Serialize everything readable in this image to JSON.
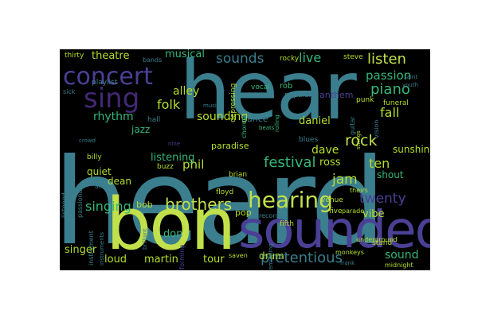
{
  "colors": {
    "background": "#000000",
    "page": "#ffffff",
    "teal": "#3b7e8e",
    "lime": "#c1e04a",
    "purple": "#4a4095",
    "violet": "#432873",
    "green": "#35b779",
    "yellowgreen": "#b5de2b"
  },
  "words": {
    "heard": "heard",
    "hear": "hear",
    "bon": "bon",
    "sounded": "sounded",
    "concert": "concert",
    "sing": "sing",
    "hearing": "hearing",
    "brothers": "brothers",
    "pretentious": "pretentious",
    "sounds": "sounds",
    "listen": "listen",
    "passion": "passion",
    "piano": "piano",
    "live": "live",
    "theatre": "theatre",
    "musical": "musical",
    "folk": "folk",
    "alley": "alley",
    "rhythm": "rhythm",
    "jazz": "jazz",
    "sounding": "sounding",
    "dance": "dance",
    "daniel": "daniel",
    "rock": "rock",
    "fall": "fall",
    "festival": "festival",
    "dave": "dave",
    "ross": "ross",
    "jam": "jam",
    "ten": "ten",
    "shout": "shout",
    "sunshine": "sunshine",
    "twenty": "twenty",
    "vibe": "vibe",
    "sound": "sound",
    "paradise": "paradise",
    "phil": "phil",
    "listening": "listening",
    "quiet": "quiet",
    "dean": "dean",
    "singing": "singing",
    "singer": "singer",
    "loud": "loud",
    "martin": "martin",
    "tour": "tour",
    "drum": "drum",
    "pop": "pop",
    "bob": "bob",
    "don": "don",
    "blues": "blues",
    "rob": "rob",
    "anthem": "anthem",
    "steve": "steve",
    "punk": "punk",
    "funeral": "funeral",
    "vocal": "vocal",
    "popular": "popular",
    "playlist": "playlist",
    "bands": "bands",
    "thirty": "thirty",
    "rocky": "rocky",
    "stand": "stand",
    "midnight": "midnight",
    "underground": "underground",
    "five": "five",
    "fifth": "fifth",
    "venue": "venue",
    "parade": "parade",
    "brian": "brian",
    "buzz": "buzz",
    "floyd": "floyd",
    "billy": "billy",
    "monkeys": "monkeys",
    "saven": "saven",
    "theirs": "theirs",
    "listened": "listened",
    "jay": "jay",
    "recorded": "recorded",
    "crowd": "crowd",
    "hall": "hall",
    "music": "music",
    "frank": "frank",
    "depressing": "depressing",
    "performing": "performing",
    "instrument": "instrument",
    "brilliant": "brilliant",
    "reminding": "reminding",
    "nine": "nine",
    "sick": "sick",
    "passionate": "passionate",
    "vision": "vision",
    "instruments": "instruments",
    "saint": "saint",
    "youth": "youth",
    "rolling": "rolling",
    "andy": "andy",
    "beats": "beats",
    "chorus": "chorus",
    "guitar": "guitar",
    "strings": "strings"
  }
}
